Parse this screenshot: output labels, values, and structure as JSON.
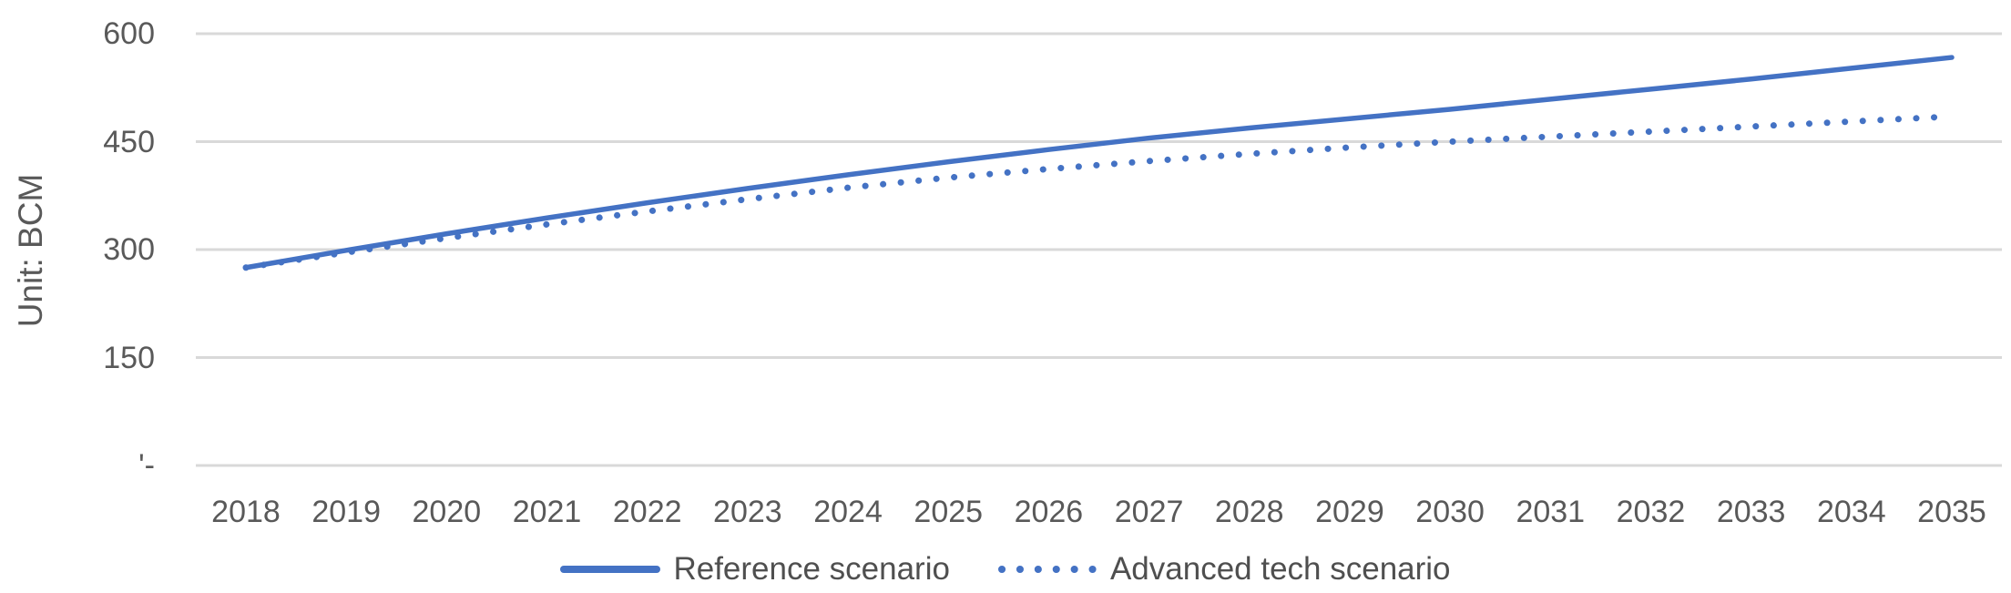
{
  "chart_data": {
    "type": "line",
    "title": "",
    "ylabel": "Unit: BCM",
    "xlabel": "",
    "categories": [
      "2018",
      "2019",
      "2020",
      "2021",
      "2022",
      "2023",
      "2024",
      "2025",
      "2026",
      "2027",
      "2028",
      "2029",
      "2030",
      "2031",
      "2032",
      "2033",
      "2034",
      "2035"
    ],
    "series": [
      {
        "name": "Reference scenario",
        "line_style": "solid",
        "values": [
          275,
          299,
          322,
          344,
          365,
          385,
          404,
          422,
          439,
          455,
          469,
          482,
          495,
          509,
          523,
          537,
          552,
          567
        ]
      },
      {
        "name": "Advanced tech scenario",
        "line_style": "dotted",
        "values": [
          275,
          296,
          316,
          335,
          353,
          370,
          386,
          400,
          412,
          423,
          433,
          442,
          450,
          457,
          464,
          471,
          478,
          485
        ]
      }
    ],
    "ylim": [
      0,
      600
    ],
    "yticks": [
      600,
      450,
      300,
      150,
      0
    ],
    "ytick_labels": [
      "600",
      "450",
      "300",
      "150",
      "'-"
    ],
    "grid": true,
    "legend_position": "bottom"
  },
  "y_axis": {
    "title": "Unit: BCM"
  },
  "legend": {
    "items": [
      {
        "label": "Reference scenario",
        "swatch": "solid-line"
      },
      {
        "label": "Advanced tech scenario",
        "swatch": "dotted-line"
      }
    ]
  },
  "colors": {
    "series_blue": "#4472C4",
    "gridline": "#D9D9D9",
    "axis_text": "#595959",
    "background": "#FFFFFF"
  }
}
